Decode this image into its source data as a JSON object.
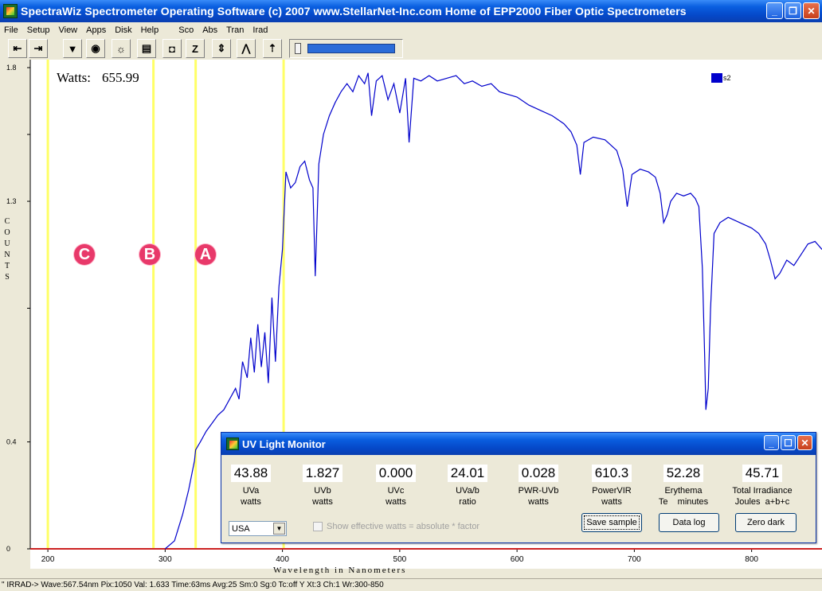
{
  "window": {
    "title": "SpectraWiz  Spectrometer Operating Software (c) 2007  www.StellarNet-Inc.com  Home of EPP2000 Fiber Optic Spectrometers",
    "icon": "spectrawiz-app-icon",
    "buttons": [
      "minimize-icon",
      "restore-icon",
      "close-icon"
    ]
  },
  "menu": [
    "File",
    "Setup",
    "View",
    "Apps",
    "Disk",
    "Help",
    "Sco",
    "Abs",
    "Tran",
    "Irad"
  ],
  "toolbar": {
    "buttons": [
      {
        "name": "scroll-left-button",
        "glyph": "⇤"
      },
      {
        "name": "scroll-right-button",
        "glyph": "⇥"
      },
      {
        "name": "save-spectrum-button",
        "glyph": "▼"
      },
      {
        "name": "light-probe-button",
        "glyph": "◉"
      },
      {
        "name": "lamp-button",
        "glyph": "☼"
      },
      {
        "name": "print-button",
        "glyph": "▤"
      },
      {
        "name": "camera-button",
        "glyph": "◘"
      },
      {
        "name": "zoom-button",
        "glyph": "Z"
      },
      {
        "name": "scale-up-button",
        "glyph": "⇕"
      },
      {
        "name": "peak-button",
        "glyph": "⋀"
      },
      {
        "name": "scale-button",
        "glyph": "⇡"
      }
    ],
    "slider_level": 1.0
  },
  "readout": {
    "label": "Watts:",
    "value": "655.99"
  },
  "region_labels": [
    "C",
    "B",
    "A"
  ],
  "chart_data": {
    "type": "line",
    "xlabel": "Wavelength in Nanometers",
    "ylabel": "COUNTS",
    "x_ticks": [
      "200",
      "300",
      "400",
      "500",
      "600",
      "700",
      "800"
    ],
    "y_ticks": [
      "0",
      "0.4",
      "1.3",
      "1.8"
    ],
    "xlim": [
      185,
      860
    ],
    "ylim": [
      0,
      1.8
    ],
    "legend": {
      "position": "top-right"
    },
    "markers": [
      {
        "label": "C",
        "x": 200
      },
      {
        "label": "B",
        "x": 290
      },
      {
        "label": "A",
        "x": 326
      },
      {
        "x": 401
      }
    ],
    "series": [
      {
        "name": "s2",
        "color": "#0000cc",
        "points": [
          [
            300,
            0.0
          ],
          [
            308,
            0.03
          ],
          [
            315,
            0.13
          ],
          [
            320,
            0.22
          ],
          [
            325,
            0.33
          ],
          [
            326,
            0.37
          ],
          [
            330,
            0.4
          ],
          [
            335,
            0.44
          ],
          [
            340,
            0.47
          ],
          [
            345,
            0.5
          ],
          [
            350,
            0.52
          ],
          [
            355,
            0.56
          ],
          [
            360,
            0.6
          ],
          [
            363,
            0.56
          ],
          [
            366,
            0.7
          ],
          [
            370,
            0.64
          ],
          [
            373,
            0.79
          ],
          [
            376,
            0.66
          ],
          [
            379,
            0.84
          ],
          [
            382,
            0.68
          ],
          [
            385,
            0.81
          ],
          [
            388,
            0.62
          ],
          [
            391,
            0.94
          ],
          [
            394,
            0.7
          ],
          [
            397,
            0.98
          ],
          [
            400,
            1.12
          ],
          [
            403,
            1.41
          ],
          [
            407,
            1.35
          ],
          [
            411,
            1.37
          ],
          [
            415,
            1.43
          ],
          [
            419,
            1.45
          ],
          [
            423,
            1.38
          ],
          [
            426,
            1.35
          ],
          [
            428,
            1.02
          ],
          [
            431,
            1.44
          ],
          [
            435,
            1.55
          ],
          [
            440,
            1.62
          ],
          [
            445,
            1.67
          ],
          [
            450,
            1.71
          ],
          [
            455,
            1.74
          ],
          [
            460,
            1.71
          ],
          [
            465,
            1.77
          ],
          [
            470,
            1.74
          ],
          [
            473,
            1.78
          ],
          [
            476,
            1.62
          ],
          [
            480,
            1.75
          ],
          [
            485,
            1.77
          ],
          [
            490,
            1.68
          ],
          [
            495,
            1.74
          ],
          [
            500,
            1.63
          ],
          [
            505,
            1.76
          ],
          [
            508,
            1.52
          ],
          [
            512,
            1.76
          ],
          [
            518,
            1.75
          ],
          [
            525,
            1.77
          ],
          [
            532,
            1.75
          ],
          [
            540,
            1.76
          ],
          [
            548,
            1.77
          ],
          [
            555,
            1.74
          ],
          [
            562,
            1.75
          ],
          [
            570,
            1.73
          ],
          [
            578,
            1.74
          ],
          [
            585,
            1.71
          ],
          [
            592,
            1.7
          ],
          [
            600,
            1.69
          ],
          [
            610,
            1.66
          ],
          [
            620,
            1.64
          ],
          [
            630,
            1.62
          ],
          [
            640,
            1.59
          ],
          [
            646,
            1.56
          ],
          [
            651,
            1.51
          ],
          [
            654,
            1.4
          ],
          [
            657,
            1.52
          ],
          [
            665,
            1.54
          ],
          [
            675,
            1.53
          ],
          [
            685,
            1.49
          ],
          [
            690,
            1.42
          ],
          [
            694,
            1.28
          ],
          [
            698,
            1.4
          ],
          [
            705,
            1.42
          ],
          [
            712,
            1.41
          ],
          [
            718,
            1.39
          ],
          [
            722,
            1.33
          ],
          [
            725,
            1.22
          ],
          [
            728,
            1.25
          ],
          [
            731,
            1.3
          ],
          [
            736,
            1.33
          ],
          [
            742,
            1.32
          ],
          [
            748,
            1.33
          ],
          [
            752,
            1.31
          ],
          [
            755,
            1.28
          ],
          [
            758,
            1.05
          ],
          [
            760,
            0.72
          ],
          [
            761,
            0.52
          ],
          [
            763,
            0.6
          ],
          [
            765,
            0.9
          ],
          [
            768,
            1.18
          ],
          [
            773,
            1.22
          ],
          [
            780,
            1.24
          ],
          [
            790,
            1.22
          ],
          [
            800,
            1.2
          ],
          [
            806,
            1.18
          ],
          [
            812,
            1.14
          ],
          [
            816,
            1.08
          ],
          [
            820,
            1.01
          ],
          [
            824,
            1.03
          ],
          [
            830,
            1.08
          ],
          [
            836,
            1.06
          ],
          [
            842,
            1.1
          ],
          [
            848,
            1.14
          ],
          [
            854,
            1.15
          ],
          [
            860,
            1.12
          ]
        ]
      }
    ]
  },
  "uv_monitor": {
    "title": "UV Light Monitor",
    "buttons": [
      "minimize-icon",
      "maximize-icon",
      "close-icon"
    ],
    "readings": [
      {
        "value": "43.88",
        "label1": "UVa",
        "label2": "watts"
      },
      {
        "value": "1.827",
        "label1": "UVb",
        "label2": "watts"
      },
      {
        "value": "0.000",
        "label1": "UVc",
        "label2": "watts"
      },
      {
        "value": "24.01",
        "label1": "UVa/b",
        "label2": "ratio"
      },
      {
        "value": "0.028",
        "label1": "PWR-UVb",
        "label2": "watts"
      },
      {
        "value": "610.3",
        "label1": "PowerVIR",
        "label2": "watts"
      },
      {
        "value": "52.28",
        "label1": "Erythema",
        "label2": "Te    minutes"
      },
      {
        "value": "45.71",
        "label1": "Total Irradiance",
        "label2": "Joules  a+b+c"
      }
    ],
    "region_select": "USA",
    "checkbox_label": "Show effective watts = absolute * factor",
    "save_label": "Save sample",
    "datalog_label": "Data log",
    "zerodark_label": "Zero dark"
  },
  "status_bar": "\" IRRAD->  Wave:567.54nm  Pix:1050  Val:  1.633  Time:63ms  Avg:25  Sm:0  Sg:0  Tc:off Y  Xt:3  Ch:1  Wr:300-850"
}
